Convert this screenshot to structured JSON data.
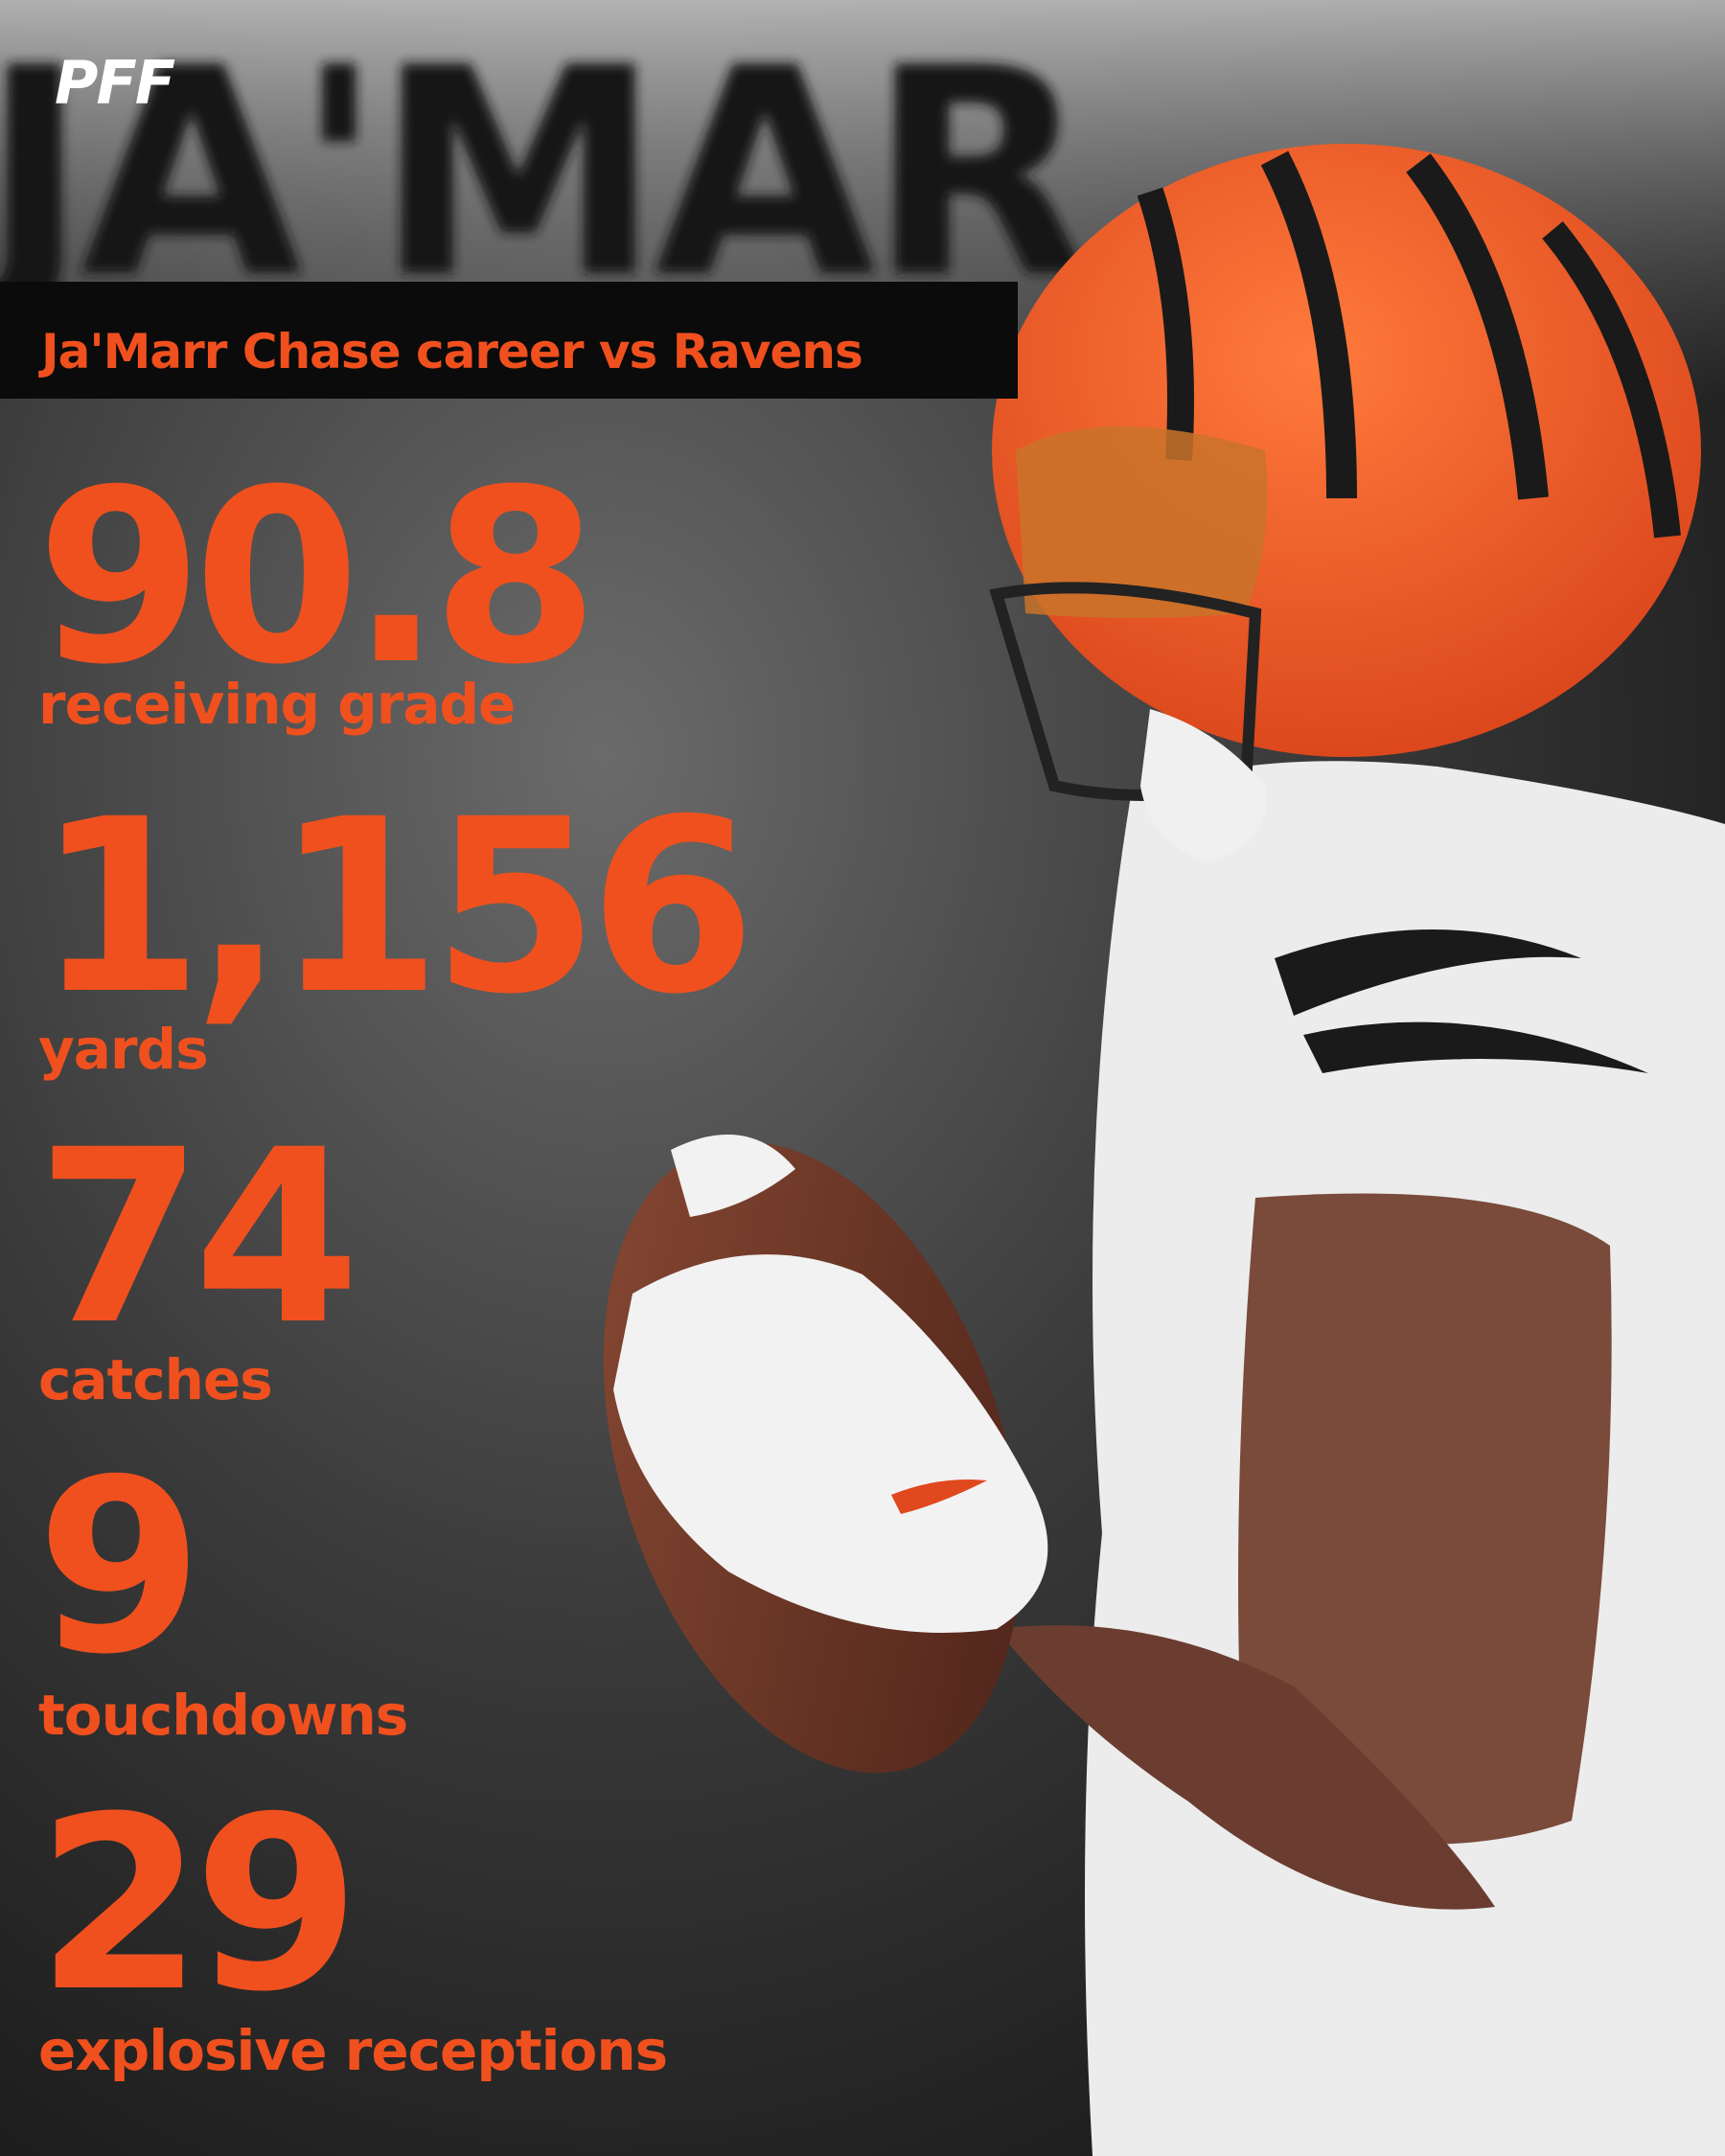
{
  "header": {
    "logo": "PFF",
    "background_name": "JA'MAR",
    "title": "Ja'Marr Chase career vs Ravens"
  },
  "stats": [
    {
      "value": "90.8",
      "label": "receiving grade"
    },
    {
      "value": "1,156",
      "label": "yards"
    },
    {
      "value": "74",
      "label": "catches"
    },
    {
      "value": "9",
      "label": "touchdowns"
    },
    {
      "value": "29",
      "label": "explosive receptions"
    }
  ]
}
